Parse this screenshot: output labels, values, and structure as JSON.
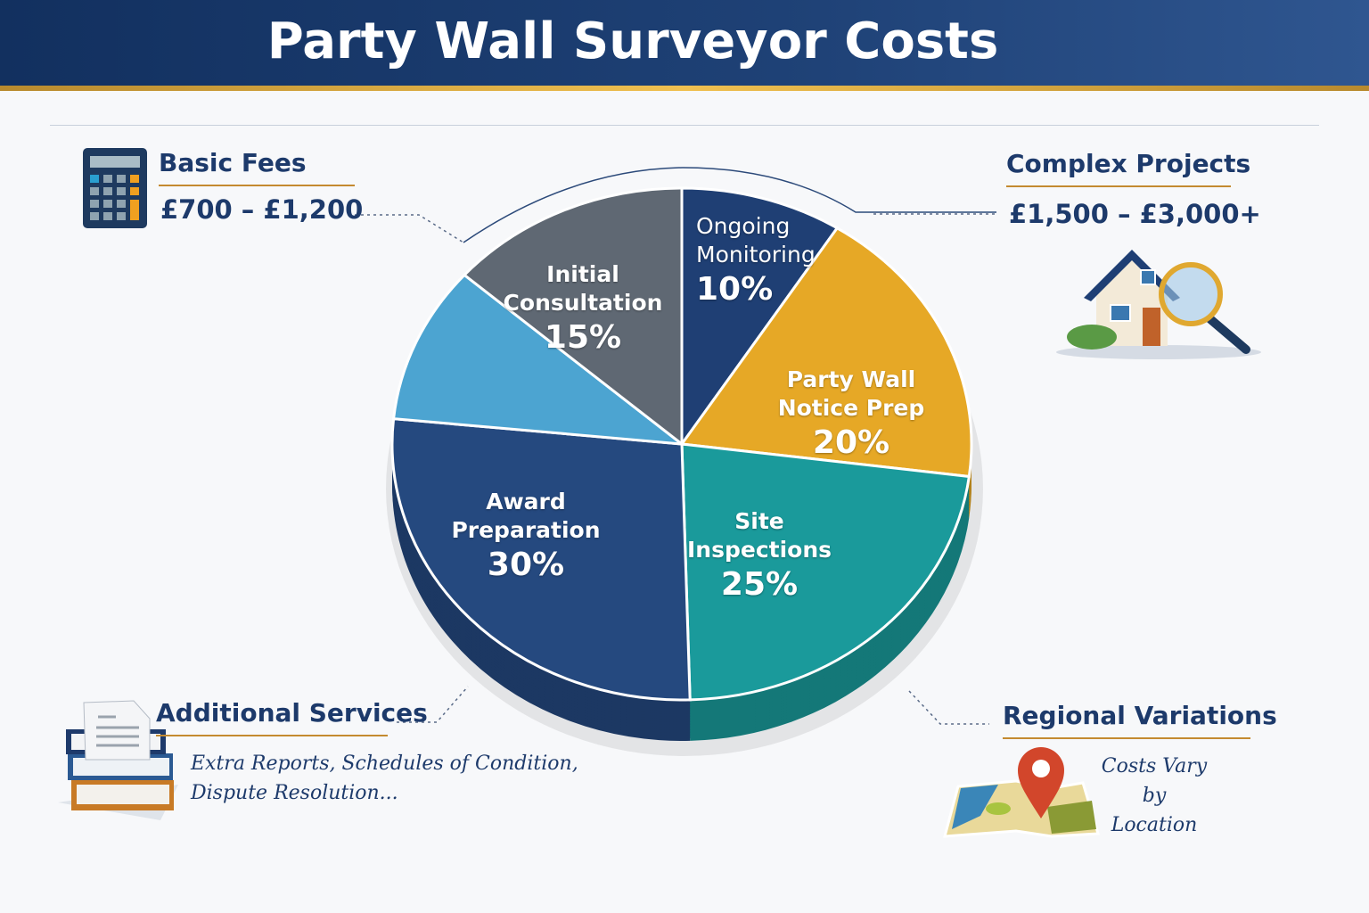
{
  "title": "Party Wall Surveyor Costs",
  "callouts": {
    "basic": {
      "heading": "Basic Fees",
      "price": "£700 – £1,200",
      "icon": "calculator-icon"
    },
    "complex": {
      "heading": "Complex Projects",
      "price": "£1,500 – £3,000+",
      "icon": "house-magnifier-icon"
    },
    "additional": {
      "heading": "Additional Services",
      "line1": "Extra Reports, Schedules of Condition,",
      "line2": "Dispute Resolution...",
      "icon": "books-document-icon"
    },
    "regional": {
      "heading": "Regional Variations",
      "line1": "Costs Vary by",
      "line2": "Location",
      "icon": "map-pin-icon"
    }
  },
  "chart_data": {
    "type": "pie",
    "title": "",
    "style": "3d",
    "slices": [
      {
        "line1": "Ongoing",
        "line2": "Monitoring",
        "label": "10%",
        "value": 10,
        "color": "#1f3f74"
      },
      {
        "line1": "Party Wall",
        "line2": "Notice Prep",
        "label": "20%",
        "value": 20,
        "color": "#e6a826"
      },
      {
        "line1": "Site",
        "line2": "Inspections",
        "label": "25%",
        "value": 25,
        "color": "#1a9a9b"
      },
      {
        "line1": "Award",
        "line2": "Preparation",
        "label": "30%",
        "value": 30,
        "color": "#25497f"
      },
      {
        "line1": "",
        "line2": "",
        "label": "",
        "value": 11,
        "color": "#4ca4d1"
      },
      {
        "line1": "Initial",
        "line2": "Consultation",
        "label": "15%",
        "value": 15,
        "color": "#5f6873"
      }
    ]
  }
}
